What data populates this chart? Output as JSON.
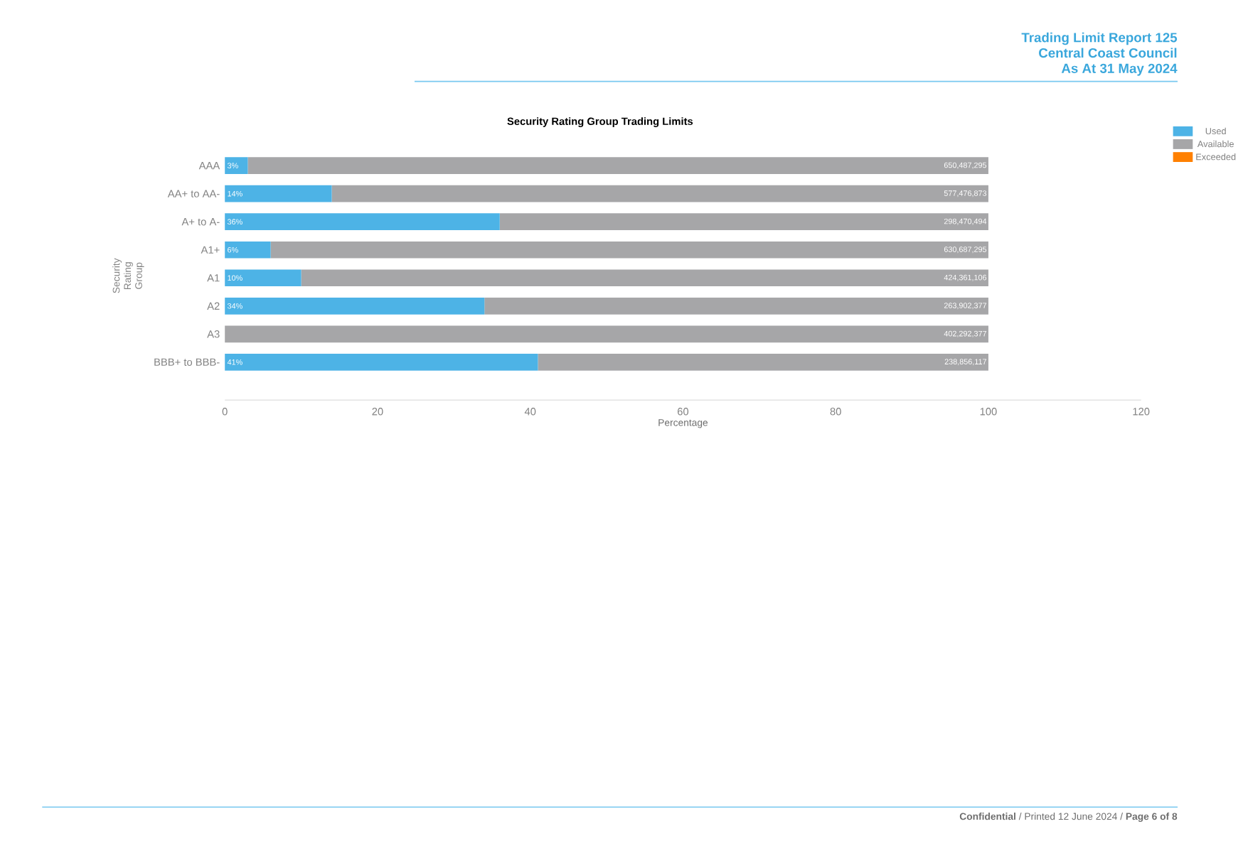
{
  "chart_data": {
    "type": "bar",
    "orientation": "horizontal",
    "stacked": true,
    "title": "Security Rating Group Trading Limits",
    "xlabel": "Percentage",
    "ylabel": "Security Rating Group",
    "categories": [
      "AAA",
      "AA+ to AA-",
      "A+ to A-",
      "A1+",
      "A1",
      "A2",
      "A3",
      "BBB+ to BBB-"
    ],
    "series": [
      {
        "name": "Used",
        "color": "#4db3e6",
        "values": [
          3,
          14,
          36,
          6,
          10,
          34,
          0,
          41
        ],
        "value_labels": [
          "3%",
          "14%",
          "36%",
          "6%",
          "10%",
          "34%",
          null,
          "41%"
        ]
      },
      {
        "name": "Available",
        "color": "#a6a6a8",
        "values": [
          97,
          86,
          64,
          94,
          90,
          66,
          100,
          59
        ]
      },
      {
        "name": "Exceeded",
        "color": "#ff8000",
        "values": [
          null,
          null,
          null,
          null,
          null,
          null,
          null,
          null
        ]
      }
    ],
    "xlim": [
      0,
      120
    ],
    "xticks": [
      0,
      20,
      40,
      60,
      80,
      100,
      120
    ],
    "grid": false,
    "legend": "top right",
    "annotations": [
      "Trading Limit Report 125",
      "Central Coast Council",
      "As At 31 May 2024",
      "**Confidential** / Printed 12 June 2024 / **Page 6 of 8**",
      {
        "text": "650,487,295",
        "y": "AAA"
      },
      {
        "text": "577,476,873",
        "y": "AA+ to AA-"
      },
      {
        "text": "298,470,494",
        "y": "A+ to A-"
      },
      {
        "text": "630,687,295",
        "y": "A1+"
      },
      {
        "text": "424,361,106",
        "y": "A1"
      },
      {
        "text": "263,902,377",
        "y": "A2"
      },
      {
        "text": "402,292,377",
        "y": "A3"
      },
      {
        "text": "238,856,117",
        "y": "BBB+ to BBB-"
      }
    ]
  }
}
